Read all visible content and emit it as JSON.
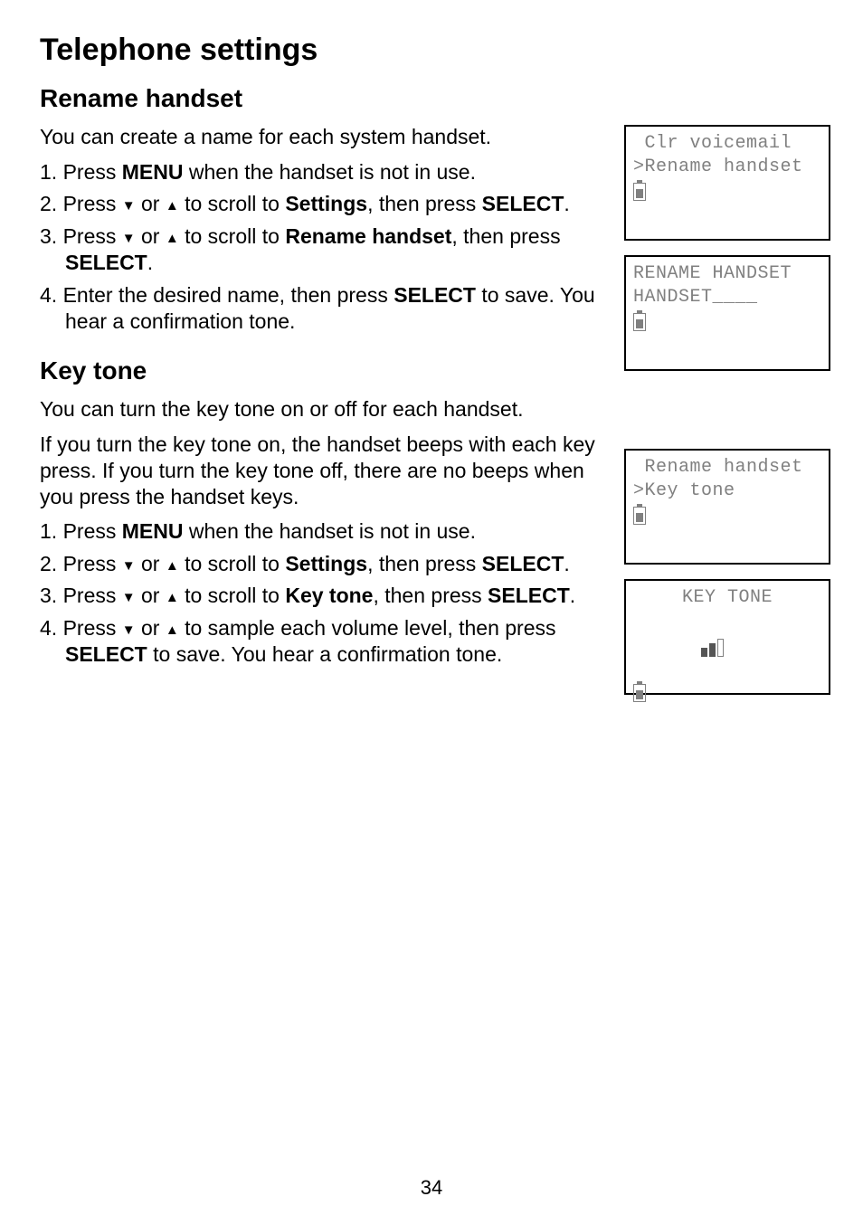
{
  "page": {
    "title": "Telephone settings",
    "number": "34"
  },
  "rename": {
    "heading": "Rename handset",
    "intro": "You can create a name for each system handset.",
    "step1_a": "Press ",
    "step1_b": "MENU",
    "step1_c": " when the handset is not in use.",
    "step2_a": "Press ",
    "step2_b": " or ",
    "step2_c": " to scroll to ",
    "step2_d": "Settings",
    "step2_e": ", then press ",
    "step2_f": "SELECT",
    "step2_g": ".",
    "step3_a": "Press ",
    "step3_b": " or ",
    "step3_c": " to scroll to ",
    "step3_d": "Rename handset",
    "step3_e": ", then press ",
    "step3_f": "SELECT",
    "step3_g": ".",
    "step4_a": "Enter the desired name, then press ",
    "step4_b": "SELECT",
    "step4_c": " to save. You hear a confirmation tone."
  },
  "keytone": {
    "heading": "Key tone",
    "intro1": "You can turn the key tone on or off for each handset.",
    "intro2": "If you turn the key tone on, the handset beeps with each key press. If you turn the key tone off, there are no beeps when you press the handset keys.",
    "step1_a": "Press ",
    "step1_b": "MENU",
    "step1_c": " when the handset is not in use.",
    "step2_a": "Press ",
    "step2_b": " or ",
    "step2_c": " to scroll to ",
    "step2_d": "Settings",
    "step2_e": ", then press ",
    "step2_f": "SELECT",
    "step2_g": ".",
    "step3_a": "Press ",
    "step3_b": " or ",
    "step3_c": " to scroll to ",
    "step3_d": "Key tone",
    "step3_e": ", then press ",
    "step3_f": "SELECT",
    "step3_g": ".",
    "step4_a": "Press ",
    "step4_b": " or ",
    "step4_c": " to sample each volume level, then press ",
    "step4_d": "SELECT",
    "step4_e": " to save. You hear a confirmation tone."
  },
  "screens": {
    "s1": {
      "l1": " Clr voicemail",
      "l2": ">Rename handset"
    },
    "s2": {
      "l1": "RENAME HANDSET",
      "l2": "HANDSET____"
    },
    "s3": {
      "l1": " Rename handset",
      "l2": ">Key tone"
    },
    "s4": {
      "l1": "KEY TONE"
    }
  },
  "glyph": {
    "down": "▼",
    "up": "▲"
  }
}
